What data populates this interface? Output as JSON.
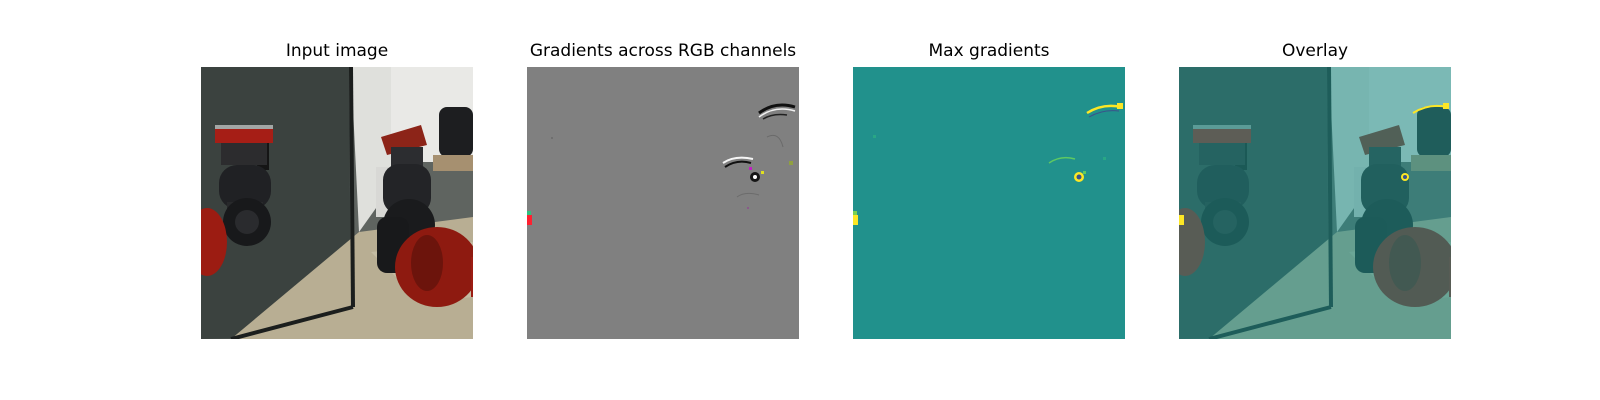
{
  "figure": {
    "panels": [
      {
        "title": "Input image",
        "content": "robot-arm-photo"
      },
      {
        "title": "Gradients across RGB channels",
        "content": "rgb-gradient-map"
      },
      {
        "title": "Max gradients",
        "content": "max-gradient-heatmap"
      },
      {
        "title": "Overlay",
        "content": "gradient-overlay-photo"
      }
    ]
  },
  "colors": {
    "background": "#ffffff",
    "gradient_gray": "#808080",
    "heatmap_teal": "#21918c",
    "heatmap_yellow": "#fde725",
    "robot_red": "#8c1c12"
  }
}
